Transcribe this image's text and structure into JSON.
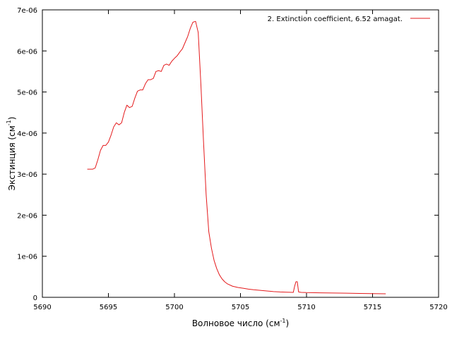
{
  "chart_data": {
    "type": "line",
    "title": "",
    "xlabel": {
      "main": "Волновое число (см",
      "sup": "-1",
      "tail": ")"
    },
    "ylabel": {
      "main": "Экстинция (см",
      "sup": "-1",
      "tail": ")"
    },
    "xlim": [
      5690,
      5720
    ],
    "ylim": [
      0,
      7e-06
    ],
    "x_ticks": [
      5690,
      5695,
      5700,
      5705,
      5710,
      5715,
      5720
    ],
    "x_tick_labels": [
      "5690",
      "5695",
      "5700",
      "5705",
      "5710",
      "5715",
      "5720"
    ],
    "y_ticks": [
      0,
      1e-06,
      2e-06,
      3e-06,
      4e-06,
      5e-06,
      6e-06,
      7e-06
    ],
    "y_tick_labels": [
      "0",
      "1e-06",
      "2e-06",
      "3e-06",
      "4e-06",
      "5e-06",
      "6e-06",
      "7e-06"
    ],
    "grid": false,
    "legend_position": "top-right",
    "series": [
      {
        "name": "2. Extinction coefficient, 6.52 amagat.",
        "color": "#e41a1c",
        "x": [
          5693.4,
          5693.8,
          5694.0,
          5694.2,
          5694.4,
          5694.6,
          5694.8,
          5695.0,
          5695.2,
          5695.4,
          5695.6,
          5695.8,
          5696.0,
          5696.2,
          5696.4,
          5696.6,
          5696.8,
          5697.0,
          5697.2,
          5697.4,
          5697.6,
          5697.8,
          5698.0,
          5698.2,
          5698.4,
          5698.6,
          5698.8,
          5699.0,
          5699.2,
          5699.4,
          5699.6,
          5699.8,
          5700.0,
          5700.2,
          5700.4,
          5700.6,
          5700.8,
          5701.0,
          5701.2,
          5701.4,
          5701.6,
          5701.8,
          5702.0,
          5702.2,
          5702.4,
          5702.6,
          5702.8,
          5703.0,
          5703.2,
          5703.4,
          5703.6,
          5703.8,
          5704.0,
          5704.4,
          5704.8,
          5705.2,
          5705.6,
          5706.0,
          5706.5,
          5707.0,
          5707.5,
          5708.0,
          5708.5,
          5709.0,
          5709.1,
          5709.2,
          5709.3,
          5709.4,
          5709.6,
          5710.0,
          5711.0,
          5712.0,
          5713.0,
          5714.0,
          5715.0,
          5716.0
        ],
        "y": [
          3.12e-06,
          3.12e-06,
          3.15e-06,
          3.35e-06,
          3.58e-06,
          3.7e-06,
          3.7e-06,
          3.78e-06,
          3.95e-06,
          4.15e-06,
          4.25e-06,
          4.2e-06,
          4.25e-06,
          4.5e-06,
          4.68e-06,
          4.62e-06,
          4.65e-06,
          4.85e-06,
          5.02e-06,
          5.05e-06,
          5.05e-06,
          5.2e-06,
          5.3e-06,
          5.3e-06,
          5.33e-06,
          5.5e-06,
          5.52e-06,
          5.5e-06,
          5.65e-06,
          5.68e-06,
          5.65e-06,
          5.75e-06,
          5.82e-06,
          5.88e-06,
          5.97e-06,
          6.05e-06,
          6.2e-06,
          6.35e-06,
          6.55e-06,
          6.7e-06,
          6.72e-06,
          6.45e-06,
          5.2e-06,
          3.8e-06,
          2.5e-06,
          1.6e-06,
          1.2e-06,
          9e-07,
          7e-07,
          5.5e-07,
          4.5e-07,
          3.8e-07,
          3.3e-07,
          2.7e-07,
          2.4e-07,
          2.2e-07,
          2e-07,
          1.85e-07,
          1.7e-07,
          1.55e-07,
          1.4e-07,
          1.3e-07,
          1.25e-07,
          1.2e-07,
          2.7e-07,
          3.8e-07,
          3.8e-07,
          1.3e-07,
          1.2e-07,
          1.15e-07,
          1.1e-07,
          1.05e-07,
          1e-07,
          9.5e-08,
          9e-08,
          8.5e-08
        ]
      }
    ]
  }
}
